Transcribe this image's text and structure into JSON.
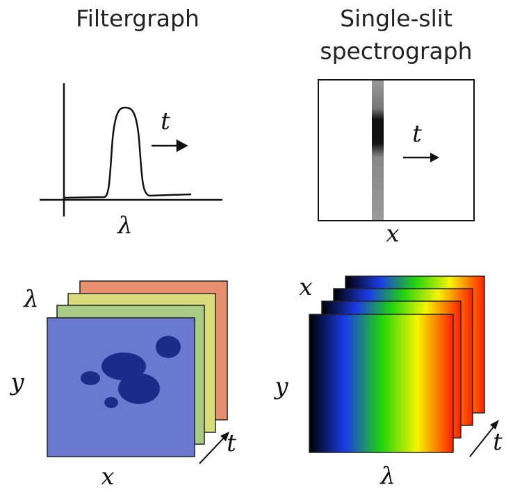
{
  "filtergraph": {
    "title": "Filtergraph",
    "plot": {
      "x_label": "λ",
      "arrow_label": "t"
    },
    "cube": {
      "x_label": "x",
      "y_label": "y",
      "depth_label": "λ",
      "time_label": "t"
    }
  },
  "spectrograph": {
    "title_lines": [
      "Single-slit",
      "spectrograph"
    ],
    "slit_image": {
      "x_label": "x",
      "arrow_label": "t"
    },
    "cube": {
      "x_label": "λ",
      "y_label": "y",
      "depth_label": "x",
      "time_label": "t"
    }
  }
}
